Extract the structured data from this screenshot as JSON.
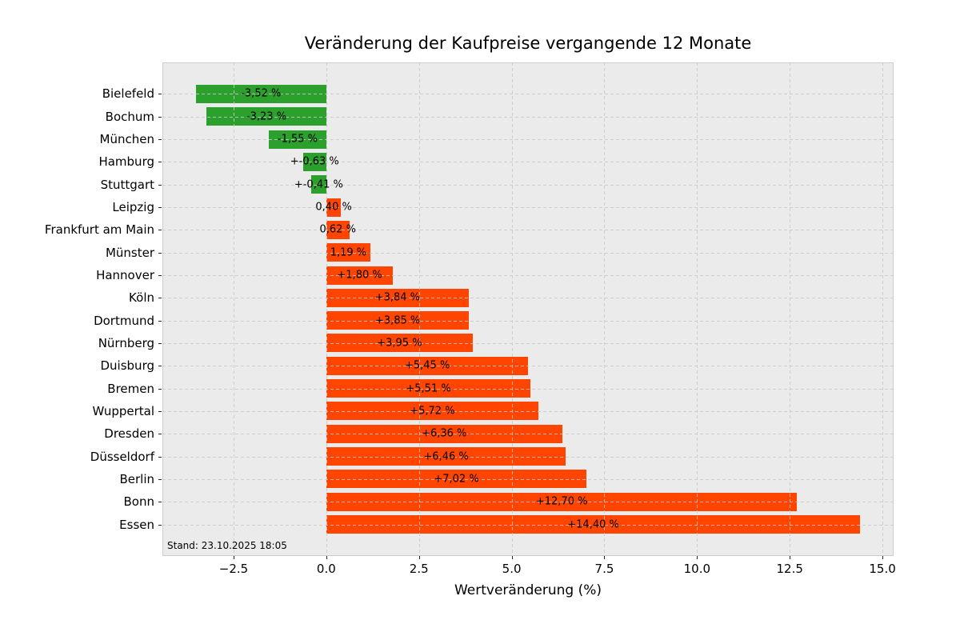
{
  "chart_data": {
    "type": "bar",
    "orientation": "horizontal",
    "title": "Veränderung der Kaufpreise vergangende 12 Monate",
    "xlabel": "Wertveränderung (%)",
    "annotation": "Stand: 23.10.2025 18:05",
    "categories": [
      "Bielefeld",
      "Bochum",
      "München",
      "Hamburg",
      "Stuttgart",
      "Leipzig",
      "Frankfurt am Main",
      "Münster",
      "Hannover",
      "Köln",
      "Dortmund",
      "Nürnberg",
      "Duisburg",
      "Bremen",
      "Wuppertal",
      "Dresden",
      "Düsseldorf",
      "Berlin",
      "Bonn",
      "Essen"
    ],
    "values": [
      -3.52,
      -3.23,
      -1.55,
      -0.63,
      -0.41,
      0.4,
      0.62,
      1.19,
      1.8,
      3.84,
      3.85,
      3.95,
      5.45,
      5.51,
      5.72,
      6.36,
      6.46,
      7.02,
      12.7,
      14.4
    ],
    "bar_labels": [
      "-3,52 %",
      "-3,23 %",
      "-1,55 %",
      "+-0,63 %",
      "+-0,41 %",
      "0,40 %",
      "0,62 %",
      "1,19 %",
      "+1,80 %",
      "+3,84 %",
      "+3,85 %",
      "+3,95 %",
      "+5,45 %",
      "+5,51 %",
      "+5,72 %",
      "+6,36 %",
      "+6,46 %",
      "+7,02 %",
      "+12,70 %",
      "+14,40 %"
    ],
    "colors": {
      "negative": "#2ca02c",
      "positive": "#ff4500",
      "plot_background": "#ebebeb",
      "figure_background": "#ffffff",
      "grid": "#c9c9c9"
    },
    "xlim": [
      -4.42,
      15.3
    ],
    "x_ticks": [
      {
        "value": -2.5,
        "label": "−2.5"
      },
      {
        "value": 0.0,
        "label": "0.0"
      },
      {
        "value": 2.5,
        "label": "2.5"
      },
      {
        "value": 5.0,
        "label": "5.0"
      },
      {
        "value": 7.5,
        "label": "7.5"
      },
      {
        "value": 10.0,
        "label": "10.0"
      },
      {
        "value": 12.5,
        "label": "12.5"
      },
      {
        "value": 15.0,
        "label": "15.0"
      }
    ],
    "grid_style": "dashed",
    "legend": "none"
  }
}
